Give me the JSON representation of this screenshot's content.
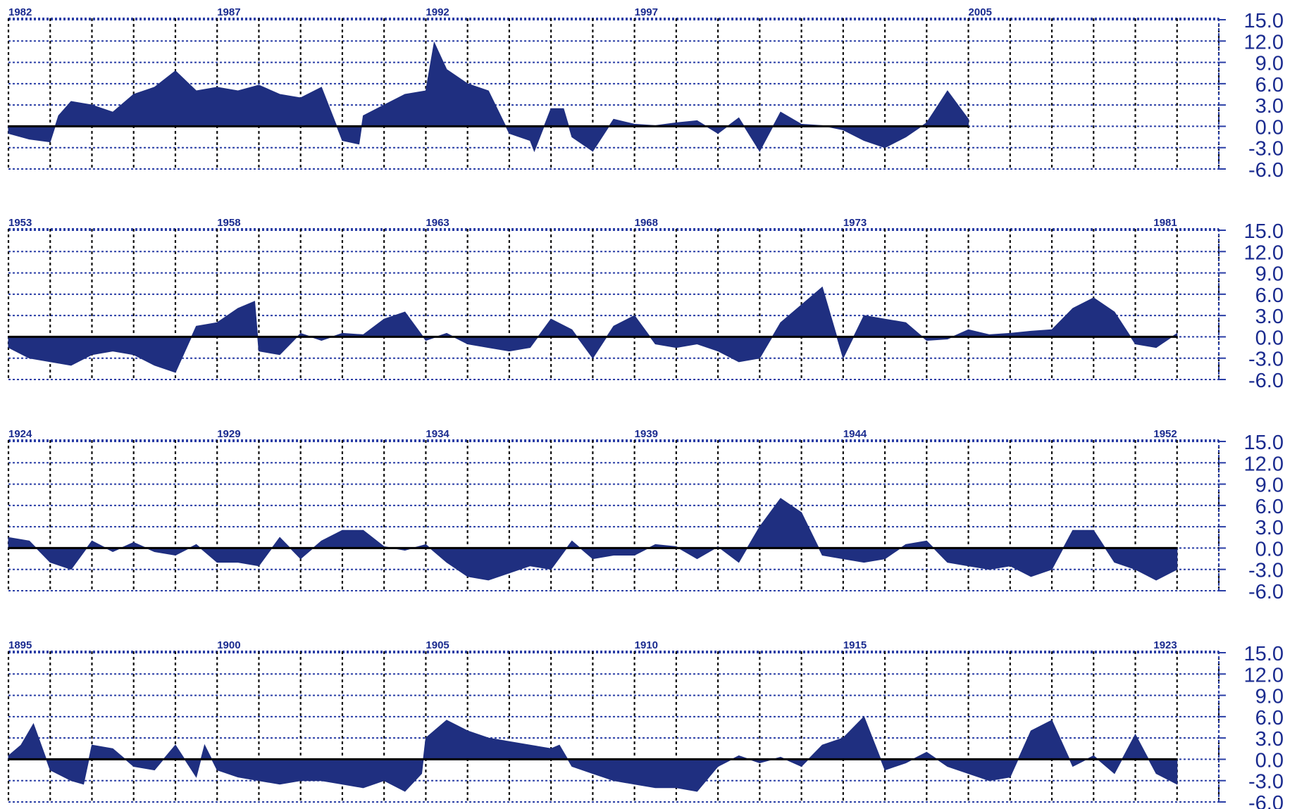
{
  "chart_data": [
    {
      "type": "area",
      "year_labels": [
        "1982",
        "1987",
        "1992",
        "1997",
        "2005"
      ],
      "y_ticks": [
        "15.0",
        "12.0",
        "9.0",
        "6.0",
        "3.0",
        "0.0",
        "-3.0",
        "-6.0"
      ],
      "ylim": [
        -6,
        15
      ],
      "grid": true,
      "colors": {
        "fill": "#1f2f80",
        "grid": "#2a3ea6",
        "baseline": "#000000"
      },
      "x": [
        1982.0,
        1982.5,
        1983.0,
        1983.2,
        1983.5,
        1984.0,
        1984.5,
        1985.0,
        1985.5,
        1986.0,
        1986.5,
        1987.0,
        1987.5,
        1988.0,
        1988.5,
        1989.0,
        1989.5,
        1990.0,
        1990.4,
        1990.5,
        1991.0,
        1991.5,
        1992.0,
        1992.2,
        1992.5,
        1993.0,
        1993.5,
        1994.0,
        1994.5,
        1994.6,
        1995.0,
        1995.3,
        1995.5,
        1996.0,
        1996.5,
        1997.0,
        1997.5,
        1998.0,
        1998.5,
        1999.0,
        1999.5,
        2000.0,
        2000.5,
        2001.0,
        2001.5,
        2002.0,
        2002.5,
        2003.0,
        2003.5,
        2004.0,
        2004.5,
        2005.0
      ],
      "values": [
        -1.0,
        -1.8,
        -2.2,
        1.5,
        3.5,
        3.0,
        2.0,
        4.5,
        5.5,
        7.8,
        5.0,
        5.5,
        5.0,
        5.8,
        4.5,
        4.0,
        5.5,
        -2.0,
        -2.5,
        1.5,
        3.0,
        4.5,
        5.0,
        11.8,
        8.0,
        6.0,
        5.0,
        -1.0,
        -2.0,
        -3.5,
        2.5,
        2.5,
        -1.5,
        -3.5,
        1.0,
        0.3,
        0.1,
        0.5,
        0.8,
        -1.0,
        1.2,
        -3.5,
        2.0,
        0.3,
        0.1,
        -0.5,
        -2.0,
        -3.0,
        -1.5,
        0.5,
        5.0,
        1.0
      ]
    },
    {
      "type": "area",
      "year_labels": [
        "1953",
        "1958",
        "1963",
        "1968",
        "1973",
        "1981"
      ],
      "y_ticks": [
        "15.0",
        "12.0",
        "9.0",
        "6.0",
        "3.0",
        "0.0",
        "-3.0",
        "-6.0"
      ],
      "ylim": [
        -6,
        15
      ],
      "grid": true,
      "colors": {
        "fill": "#1f2f80",
        "grid": "#2a3ea6",
        "baseline": "#000000"
      },
      "x": [
        1953.0,
        1953.5,
        1954.0,
        1954.5,
        1955.0,
        1955.5,
        1956.0,
        1956.5,
        1957.0,
        1957.5,
        1958.0,
        1958.5,
        1958.9,
        1959.0,
        1959.5,
        1960.0,
        1960.5,
        1961.0,
        1961.5,
        1962.0,
        1962.5,
        1963.0,
        1963.5,
        1964.0,
        1964.5,
        1965.0,
        1965.5,
        1966.0,
        1966.5,
        1967.0,
        1967.5,
        1968.0,
        1968.5,
        1969.0,
        1969.5,
        1970.0,
        1970.5,
        1971.0,
        1971.5,
        1972.0,
        1972.5,
        1973.0,
        1973.5,
        1974.0,
        1974.5,
        1975.0,
        1975.5,
        1976.0,
        1976.5,
        1977.0,
        1977.5,
        1978.0,
        1978.5,
        1979.0,
        1979.5,
        1980.0,
        1980.5,
        1981.0
      ],
      "values": [
        -1.5,
        -3.0,
        -3.5,
        -4.0,
        -2.5,
        -2.0,
        -2.5,
        -4.0,
        -5.0,
        1.5,
        2.0,
        4.0,
        5.0,
        -2.0,
        -2.5,
        0.5,
        -0.5,
        0.5,
        0.3,
        2.5,
        3.5,
        -0.5,
        0.5,
        -1.0,
        -1.5,
        -2.0,
        -1.5,
        2.5,
        1.0,
        -3.0,
        1.5,
        3.0,
        -1.0,
        -1.5,
        -1.0,
        -2.0,
        -3.5,
        -3.0,
        2.0,
        4.5,
        7.0,
        -3.0,
        3.0,
        2.5,
        2.0,
        -0.5,
        -0.3,
        1.0,
        0.3,
        0.5,
        0.8,
        1.0,
        4.0,
        5.5,
        3.5,
        -1.0,
        -1.5,
        0.5
      ]
    },
    {
      "type": "area",
      "year_labels": [
        "1924",
        "1929",
        "1934",
        "1939",
        "1944",
        "1952"
      ],
      "y_ticks": [
        "15.0",
        "12.0",
        "9.0",
        "6.0",
        "3.0",
        "0.0",
        "-3.0",
        "-6.0"
      ],
      "ylim": [
        -6,
        15
      ],
      "grid": true,
      "colors": {
        "fill": "#1f2f80",
        "grid": "#2a3ea6",
        "baseline": "#000000"
      },
      "x": [
        1924.0,
        1924.5,
        1925.0,
        1925.5,
        1926.0,
        1926.5,
        1927.0,
        1927.5,
        1928.0,
        1928.5,
        1929.0,
        1929.5,
        1930.0,
        1930.5,
        1931.0,
        1931.5,
        1932.0,
        1932.5,
        1933.0,
        1933.5,
        1934.0,
        1934.5,
        1935.0,
        1935.5,
        1936.0,
        1936.5,
        1937.0,
        1937.5,
        1938.0,
        1938.5,
        1939.0,
        1939.5,
        1940.0,
        1940.5,
        1941.0,
        1941.5,
        1942.0,
        1942.5,
        1943.0,
        1943.5,
        1944.0,
        1944.5,
        1945.0,
        1945.5,
        1946.0,
        1946.5,
        1947.0,
        1947.5,
        1948.0,
        1948.5,
        1949.0,
        1949.5,
        1950.0,
        1950.5,
        1951.0,
        1951.5,
        1952.0
      ],
      "values": [
        1.5,
        1.0,
        -2.0,
        -3.0,
        1.0,
        -0.5,
        0.8,
        -0.5,
        -1.0,
        0.5,
        -2.0,
        -2.0,
        -2.5,
        1.5,
        -1.5,
        1.0,
        2.5,
        2.5,
        0.2,
        -0.3,
        0.5,
        -2.0,
        -4.0,
        -4.5,
        -3.5,
        -2.5,
        -3.0,
        1.0,
        -1.5,
        -1.0,
        -1.0,
        0.5,
        0.2,
        -1.5,
        0.2,
        -2.0,
        3.0,
        7.0,
        5.0,
        -1.0,
        -1.5,
        -2.0,
        -1.5,
        0.5,
        1.0,
        -2.0,
        -2.5,
        -3.0,
        -2.5,
        -4.0,
        -3.0,
        2.5,
        2.5,
        -2.0,
        -3.0,
        -4.5,
        -3.0
      ]
    },
    {
      "type": "area",
      "year_labels": [
        "1895",
        "1900",
        "1905",
        "1910",
        "1915",
        "1923"
      ],
      "y_ticks": [
        "15.0",
        "12.0",
        "9.0",
        "6.0",
        "3.0",
        "0.0",
        "-3.0",
        "-6.0"
      ],
      "ylim": [
        -6,
        15
      ],
      "grid": true,
      "colors": {
        "fill": "#1f2f80",
        "grid": "#2a3ea6",
        "baseline": "#000000"
      },
      "x": [
        1895.0,
        1895.3,
        1895.6,
        1896.0,
        1896.5,
        1896.8,
        1897.0,
        1897.5,
        1898.0,
        1898.5,
        1899.0,
        1899.5,
        1899.7,
        1900.0,
        1900.5,
        1901.0,
        1901.5,
        1902.0,
        1902.5,
        1903.0,
        1903.5,
        1904.0,
        1904.5,
        1904.9,
        1905.0,
        1905.5,
        1906.0,
        1906.5,
        1907.0,
        1907.5,
        1908.0,
        1908.2,
        1908.5,
        1909.0,
        1909.5,
        1910.0,
        1910.5,
        1911.0,
        1911.5,
        1912.0,
        1912.5,
        1913.0,
        1913.5,
        1914.0,
        1914.5,
        1915.0,
        1915.5,
        1916.0,
        1916.5,
        1917.0,
        1917.5,
        1918.0,
        1918.5,
        1919.0,
        1919.5,
        1920.0,
        1920.5,
        1921.0,
        1921.5,
        1922.0,
        1922.5,
        1923.0
      ],
      "values": [
        0.5,
        2.0,
        5.0,
        -1.5,
        -3.0,
        -3.5,
        2.0,
        1.5,
        -1.0,
        -1.5,
        2.0,
        -2.5,
        2.0,
        -1.5,
        -2.5,
        -3.0,
        -3.5,
        -3.0,
        -3.0,
        -3.5,
        -4.0,
        -3.0,
        -4.5,
        -2.0,
        3.0,
        5.5,
        4.0,
        3.0,
        2.5,
        2.0,
        1.5,
        2.0,
        -1.0,
        -2.0,
        -3.0,
        -3.5,
        -4.0,
        -4.0,
        -4.5,
        -1.0,
        0.5,
        -0.5,
        0.3,
        -1.0,
        2.0,
        3.0,
        6.0,
        -1.5,
        -0.5,
        1.0,
        -1.0,
        -2.0,
        -3.0,
        -2.5,
        4.0,
        5.5,
        -1.0,
        0.5,
        -2.0,
        3.5,
        -2.0,
        -3.5
      ]
    }
  ]
}
